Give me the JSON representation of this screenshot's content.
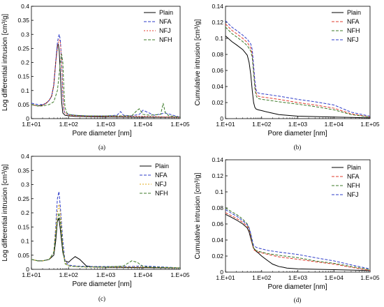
{
  "chart_data": [
    {
      "panel_label": "(a)",
      "type": "line",
      "xscale": "log",
      "xlim": [
        10,
        100000
      ],
      "ylim": [
        0,
        0.4
      ],
      "xticks": [
        "1.E+01",
        "1.E+02",
        "1.E+03",
        "1.E+04",
        "1.E+05"
      ],
      "yticks": [
        "0",
        "0.05",
        "0.1",
        "0.15",
        "0.2",
        "0.25",
        "0.3",
        "0.35",
        "0.4"
      ],
      "xlabel": "Pore diameter [nm]",
      "ylabel": "Log differential intrusion [cm³/g]",
      "legend_position": "top-right",
      "series": [
        {
          "name": "Plain",
          "color": "#000000",
          "dash": "",
          "x": [
            10,
            15,
            20,
            25,
            30,
            35,
            40,
            45,
            50,
            53,
            56,
            60,
            65,
            70,
            80,
            100,
            150,
            300,
            1000,
            10000,
            100000
          ],
          "y": [
            0.05,
            0.045,
            0.048,
            0.055,
            0.065,
            0.08,
            0.12,
            0.2,
            0.26,
            0.265,
            0.24,
            0.16,
            0.06,
            0.02,
            0.012,
            0.01,
            0.008,
            0.007,
            0.006,
            0.005,
            0.005
          ]
        },
        {
          "name": "NFA",
          "color": "#2e3cc9",
          "dash": "4,2",
          "x": [
            10,
            15,
            20,
            25,
            30,
            35,
            40,
            45,
            50,
            53,
            56,
            60,
            65,
            70,
            75,
            80,
            100,
            150,
            300,
            1000,
            2000,
            2500,
            3000,
            5000,
            8000,
            10000,
            20000,
            40000,
            100000
          ],
          "y": [
            0.055,
            0.05,
            0.05,
            0.055,
            0.065,
            0.08,
            0.12,
            0.2,
            0.27,
            0.29,
            0.3,
            0.28,
            0.2,
            0.08,
            0.03,
            0.02,
            0.015,
            0.012,
            0.01,
            0.01,
            0.012,
            0.025,
            0.012,
            0.01,
            0.015,
            0.03,
            0.012,
            0.02,
            0.005
          ]
        },
        {
          "name": "NFJ",
          "color": "#e03c2e",
          "dash": "2,2",
          "x": [
            10,
            15,
            20,
            25,
            30,
            35,
            40,
            45,
            50,
            53,
            56,
            60,
            65,
            70,
            75,
            80,
            100,
            150,
            300,
            1000,
            10000,
            100000
          ],
          "y": [
            0.05,
            0.045,
            0.048,
            0.055,
            0.065,
            0.08,
            0.12,
            0.2,
            0.25,
            0.27,
            0.28,
            0.27,
            0.2,
            0.09,
            0.03,
            0.02,
            0.012,
            0.01,
            0.008,
            0.008,
            0.008,
            0.005
          ]
        },
        {
          "name": "NFH",
          "color": "#3c7a28",
          "dash": "4,2",
          "x": [
            10,
            15,
            20,
            30,
            40,
            50,
            55,
            60,
            65,
            70,
            75,
            80,
            90,
            100,
            150,
            300,
            1000,
            5000,
            7000,
            8000,
            10000,
            15000,
            30000,
            35000,
            40000,
            50000,
            100000
          ],
          "y": [
            0.05,
            0.045,
            0.045,
            0.05,
            0.06,
            0.1,
            0.15,
            0.2,
            0.23,
            0.2,
            0.1,
            0.04,
            0.02,
            0.015,
            0.012,
            0.01,
            0.01,
            0.01,
            0.03,
            0.035,
            0.015,
            0.012,
            0.015,
            0.055,
            0.02,
            0.01,
            0.005
          ]
        }
      ]
    },
    {
      "panel_label": "(b)",
      "type": "line",
      "xscale": "log",
      "xlim": [
        10,
        100000
      ],
      "ylim": [
        0,
        0.14
      ],
      "xticks": [
        "1.E+01",
        "1.E+02",
        "1.E+03",
        "1.E+04",
        "1.E+05"
      ],
      "yticks": [
        "0",
        "0.02",
        "0.04",
        "0.06",
        "0.08",
        "0.1",
        "0.12",
        "0.14"
      ],
      "xlabel": "Pore diameter [nm]",
      "ylabel": "Cumulative intrusion [cm³/g]",
      "legend_position": "top-right",
      "series": [
        {
          "name": "Plain",
          "color": "#000000",
          "dash": "",
          "x": [
            10,
            15,
            20,
            30,
            40,
            45,
            50,
            55,
            60,
            65,
            70,
            80,
            100,
            150,
            300,
            1000,
            10000,
            100000
          ],
          "y": [
            0.103,
            0.096,
            0.092,
            0.086,
            0.079,
            0.07,
            0.055,
            0.035,
            0.02,
            0.014,
            0.012,
            0.011,
            0.01,
            0.008,
            0.005,
            0.003,
            0.002,
            0.001
          ]
        },
        {
          "name": "NFA",
          "color": "#e03c2e",
          "dash": "4,2",
          "x": [
            10,
            15,
            20,
            30,
            40,
            50,
            55,
            60,
            65,
            70,
            75,
            80,
            100,
            150,
            300,
            1000,
            3000,
            10000,
            30000,
            100000
          ],
          "y": [
            0.118,
            0.11,
            0.106,
            0.1,
            0.095,
            0.088,
            0.08,
            0.06,
            0.042,
            0.032,
            0.029,
            0.028,
            0.027,
            0.026,
            0.024,
            0.02,
            0.017,
            0.013,
            0.006,
            0.002
          ]
        },
        {
          "name": "NFH",
          "color": "#3c7a28",
          "dash": "4,2",
          "x": [
            10,
            15,
            20,
            30,
            40,
            50,
            55,
            60,
            65,
            70,
            75,
            80,
            100,
            150,
            300,
            1000,
            3000,
            10000,
            30000,
            100000
          ],
          "y": [
            0.114,
            0.106,
            0.102,
            0.096,
            0.091,
            0.084,
            0.076,
            0.056,
            0.038,
            0.029,
            0.026,
            0.025,
            0.024,
            0.023,
            0.021,
            0.018,
            0.015,
            0.011,
            0.005,
            0.002
          ]
        },
        {
          "name": "NFJ",
          "color": "#2e3cc9",
          "dash": "4,2",
          "x": [
            10,
            15,
            20,
            30,
            40,
            50,
            55,
            60,
            65,
            70,
            75,
            80,
            100,
            150,
            300,
            1000,
            3000,
            10000,
            30000,
            100000
          ],
          "y": [
            0.122,
            0.114,
            0.11,
            0.104,
            0.099,
            0.093,
            0.086,
            0.066,
            0.047,
            0.036,
            0.033,
            0.032,
            0.031,
            0.03,
            0.028,
            0.024,
            0.021,
            0.017,
            0.008,
            0.003
          ]
        }
      ]
    },
    {
      "panel_label": "(c)",
      "type": "line",
      "xscale": "log",
      "xlim": [
        10,
        100000
      ],
      "ylim": [
        0,
        0.4
      ],
      "xticks": [
        "1.E+01",
        "1.E+02",
        "1.E+03",
        "1.E+04",
        "1.E+05"
      ],
      "yticks": [
        "0",
        "0.05",
        "0.1",
        "0.15",
        "0.2",
        "0.25",
        "0.3",
        "0.35",
        "0.4"
      ],
      "xlabel": "Pore diameter [nm]",
      "ylabel": "Log differential intrusion [cm³/g]",
      "legend_position": "top-right",
      "series": [
        {
          "name": "Plain",
          "color": "#000000",
          "dash": "",
          "x": [
            10,
            15,
            20,
            30,
            40,
            45,
            50,
            55,
            60,
            70,
            80,
            100,
            120,
            150,
            200,
            300,
            500,
            1000,
            10000,
            100000
          ],
          "y": [
            0.035,
            0.03,
            0.03,
            0.035,
            0.05,
            0.1,
            0.17,
            0.18,
            0.14,
            0.06,
            0.03,
            0.025,
            0.035,
            0.045,
            0.035,
            0.012,
            0.008,
            0.007,
            0.006,
            0.005
          ]
        },
        {
          "name": "NFA",
          "color": "#2e3cc9",
          "dash": "4,2",
          "x": [
            10,
            15,
            20,
            30,
            40,
            45,
            50,
            55,
            60,
            70,
            80,
            100,
            150,
            300,
            1000,
            5000,
            10000,
            100000
          ],
          "y": [
            0.035,
            0.03,
            0.03,
            0.035,
            0.06,
            0.15,
            0.25,
            0.275,
            0.22,
            0.1,
            0.03,
            0.015,
            0.012,
            0.01,
            0.01,
            0.01,
            0.012,
            0.005
          ]
        },
        {
          "name": "NFJ",
          "color": "#e0a818",
          "dash": "2,2",
          "x": [
            10,
            15,
            20,
            30,
            40,
            45,
            50,
            55,
            60,
            70,
            80,
            100,
            150,
            300,
            1000,
            5000,
            10000,
            100000
          ],
          "y": [
            0.035,
            0.03,
            0.03,
            0.035,
            0.06,
            0.14,
            0.2,
            0.23,
            0.2,
            0.08,
            0.025,
            0.012,
            0.01,
            0.008,
            0.008,
            0.008,
            0.008,
            0.005
          ]
        },
        {
          "name": "NFH",
          "color": "#3c7a28",
          "dash": "4,2",
          "x": [
            10,
            15,
            20,
            30,
            40,
            45,
            50,
            55,
            60,
            70,
            80,
            100,
            150,
            300,
            1000,
            3000,
            5000,
            7000,
            10000,
            15000,
            100000
          ],
          "y": [
            0.035,
            0.03,
            0.03,
            0.035,
            0.06,
            0.12,
            0.17,
            0.2,
            0.17,
            0.07,
            0.02,
            0.012,
            0.01,
            0.008,
            0.008,
            0.012,
            0.03,
            0.025,
            0.01,
            0.008,
            0.005
          ]
        }
      ]
    },
    {
      "panel_label": "(d)",
      "type": "line",
      "xscale": "log",
      "xlim": [
        10,
        100000
      ],
      "ylim": [
        0,
        0.14
      ],
      "xticks": [
        "1.E+01",
        "1.E+02",
        "1.E+03",
        "1.E+04",
        "1.E+05"
      ],
      "yticks": [
        "0",
        "0.02",
        "0.04",
        "0.06",
        "0.08",
        "0.1",
        "0.12",
        "0.14"
      ],
      "xlabel": "Pore diameter [nm]",
      "ylabel": "Cumulative intrusion [cm³/g]",
      "legend_position": "top-right",
      "series": [
        {
          "name": "Plain",
          "color": "#000000",
          "dash": "",
          "x": [
            10,
            15,
            20,
            30,
            40,
            45,
            50,
            55,
            60,
            70,
            80,
            100,
            150,
            200,
            300,
            400,
            500,
            1000,
            10000,
            100000
          ],
          "y": [
            0.072,
            0.068,
            0.065,
            0.06,
            0.055,
            0.05,
            0.042,
            0.035,
            0.03,
            0.026,
            0.024,
            0.02,
            0.014,
            0.01,
            0.007,
            0.006,
            0.005,
            0.004,
            0.003,
            0.002
          ]
        },
        {
          "name": "NFA",
          "color": "#e03c2e",
          "dash": "4,2",
          "x": [
            10,
            15,
            20,
            30,
            40,
            45,
            50,
            55,
            60,
            70,
            80,
            100,
            150,
            300,
            1000,
            3000,
            10000,
            30000,
            100000
          ],
          "y": [
            0.074,
            0.07,
            0.067,
            0.062,
            0.057,
            0.053,
            0.045,
            0.035,
            0.028,
            0.026,
            0.025,
            0.024,
            0.022,
            0.019,
            0.016,
            0.013,
            0.01,
            0.006,
            0.002
          ]
        },
        {
          "name": "NFH",
          "color": "#3c7a28",
          "dash": "4,2",
          "x": [
            10,
            15,
            20,
            30,
            40,
            45,
            50,
            55,
            60,
            70,
            80,
            100,
            150,
            300,
            1000,
            3000,
            10000,
            30000,
            100000
          ],
          "y": [
            0.08,
            0.075,
            0.072,
            0.066,
            0.06,
            0.055,
            0.047,
            0.037,
            0.03,
            0.027,
            0.026,
            0.025,
            0.023,
            0.021,
            0.018,
            0.014,
            0.011,
            0.007,
            0.003
          ]
        },
        {
          "name": "NFJ",
          "color": "#2e3cc9",
          "dash": "4,2",
          "x": [
            10,
            15,
            20,
            30,
            40,
            45,
            50,
            55,
            60,
            70,
            80,
            100,
            150,
            300,
            1000,
            3000,
            10000,
            30000,
            100000
          ],
          "y": [
            0.078,
            0.073,
            0.07,
            0.064,
            0.059,
            0.055,
            0.048,
            0.04,
            0.033,
            0.031,
            0.03,
            0.029,
            0.027,
            0.025,
            0.022,
            0.018,
            0.014,
            0.009,
            0.004
          ]
        }
      ]
    }
  ]
}
